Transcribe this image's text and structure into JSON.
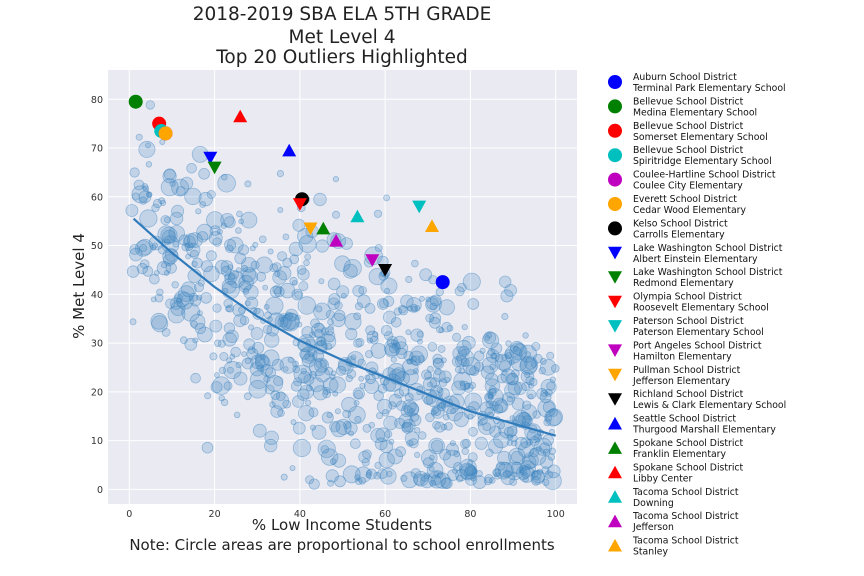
{
  "chart_data": {
    "type": "scatter",
    "title_lines": [
      "2018-2019 SBA ELA 5TH GRADE",
      "Met Level 4",
      "Top 20 Outliers Highlighted"
    ],
    "xlabel": "% Low Income Students",
    "note": "Note: Circle areas are proportional to school enrollments",
    "ylabel": "% Met Level 4",
    "xlim": [
      -5,
      105
    ],
    "ylim": [
      -3,
      86
    ],
    "xticks": [
      0,
      20,
      40,
      60,
      80,
      100
    ],
    "yticks": [
      0,
      10,
      20,
      30,
      40,
      50,
      60,
      70,
      80
    ],
    "grid": true,
    "legend_position": "right, outside plot",
    "background_school_color": "#3a82bf",
    "trend_line": {
      "color": "#2f7bbb",
      "x": [
        1,
        10,
        20,
        30,
        40,
        50,
        60,
        70,
        80,
        90,
        100
      ],
      "y": [
        55.5,
        48.5,
        41.5,
        35.5,
        30.5,
        26.5,
        23,
        19.5,
        16,
        13.5,
        11
      ]
    },
    "outliers": [
      {
        "district": "Auburn School District",
        "school": "Terminal Park Elementary School",
        "marker": "circle",
        "color": "#0000ff",
        "x": 73.5,
        "y": 42.5
      },
      {
        "district": "Bellevue School District",
        "school": "Medina Elementary School",
        "marker": "circle",
        "color": "#008000",
        "x": 1.5,
        "y": 79.5
      },
      {
        "district": "Bellevue School District",
        "school": "Somerset Elementary School",
        "marker": "circle",
        "color": "#ff0000",
        "x": 7,
        "y": 75
      },
      {
        "district": "Bellevue School District",
        "school": "Spiritridge Elementary School",
        "marker": "circle",
        "color": "#00bfbf",
        "x": 7.5,
        "y": 73.5
      },
      {
        "district": "Coulee-Hartline School District",
        "school": "Coulee City Elementary",
        "marker": "circle",
        "color": "#bf00bf",
        "x": 8.5,
        "y": 73
      },
      {
        "district": "Everett School District",
        "school": "Cedar Wood Elementary",
        "marker": "circle",
        "color": "#ffa500",
        "x": 8.5,
        "y": 73
      },
      {
        "district": "Kelso School District",
        "school": "Carrolls Elementary",
        "marker": "circle",
        "color": "#000000",
        "x": 40.5,
        "y": 59.5
      },
      {
        "district": "Lake Washington School District",
        "school": "Albert Einstein Elementary",
        "marker": "triangle-down",
        "color": "#0000ff",
        "x": 19,
        "y": 68
      },
      {
        "district": "Lake Washington School District",
        "school": "Redmond Elementary",
        "marker": "triangle-down",
        "color": "#008000",
        "x": 20,
        "y": 66
      },
      {
        "district": "Olympia School District",
        "school": "Roosevelt Elementary School",
        "marker": "triangle-down",
        "color": "#ff0000",
        "x": 40,
        "y": 58.5
      },
      {
        "district": "Paterson School District",
        "school": "Paterson Elementary School",
        "marker": "triangle-down",
        "color": "#00bfbf",
        "x": 68,
        "y": 58
      },
      {
        "district": "Port Angeles School District",
        "school": "Hamilton Elementary",
        "marker": "triangle-down",
        "color": "#bf00bf",
        "x": 57,
        "y": 47
      },
      {
        "district": "Pullman School District",
        "school": "Jefferson Elementary",
        "marker": "triangle-down",
        "color": "#ffa500",
        "x": 42.5,
        "y": 53.5
      },
      {
        "district": "Richland School District",
        "school": "Lewis & Clark Elementary School",
        "marker": "triangle-down",
        "color": "#000000",
        "x": 60,
        "y": 45
      },
      {
        "district": "Seattle School District",
        "school": "Thurgood Marshall Elementary",
        "marker": "triangle-up",
        "color": "#0000ff",
        "x": 37.5,
        "y": 69.5
      },
      {
        "district": "Spokane School District",
        "school": "Franklin Elementary",
        "marker": "triangle-up",
        "color": "#008000",
        "x": 45.5,
        "y": 53.5
      },
      {
        "district": "Spokane School District",
        "school": "Libby Center",
        "marker": "triangle-up",
        "color": "#ff0000",
        "x": 26,
        "y": 76.5
      },
      {
        "district": "Tacoma School District",
        "school": "Downing",
        "marker": "triangle-up",
        "color": "#00bfbf",
        "x": 53.5,
        "y": 56
      },
      {
        "district": "Tacoma School District",
        "school": "Jefferson",
        "marker": "triangle-up",
        "color": "#bf00bf",
        "x": 48.5,
        "y": 51
      },
      {
        "district": "Tacoma School District",
        "school": "Stanley",
        "marker": "triangle-up",
        "color": "#ffa500",
        "x": 71,
        "y": 54
      }
    ]
  }
}
